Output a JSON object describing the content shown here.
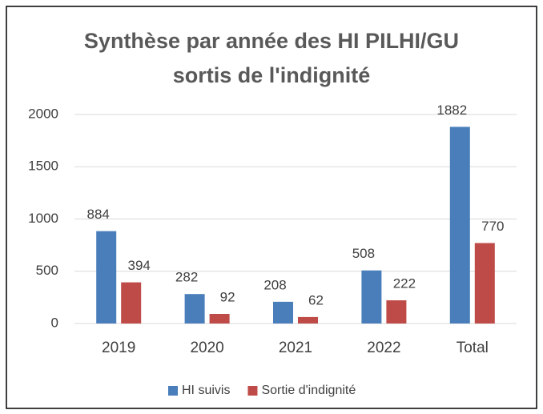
{
  "chart_data": {
    "type": "bar",
    "title": "Synthèse par année des HI PILHI/GU sortis de l'indignité",
    "categories": [
      "2019",
      "2020",
      "2021",
      "2022",
      "Total"
    ],
    "series": [
      {
        "name": "HI suivis",
        "color": "#4a7ebb",
        "values": [
          884,
          282,
          208,
          508,
          1882
        ]
      },
      {
        "name": "Sortie d'indignité",
        "color": "#be4b48",
        "values": [
          394,
          92,
          62,
          222,
          770
        ]
      }
    ],
    "ylim": [
      0,
      2000
    ],
    "yticks": [
      0,
      500,
      1000,
      1500,
      2000
    ],
    "grid": true,
    "legend": "bottom"
  }
}
